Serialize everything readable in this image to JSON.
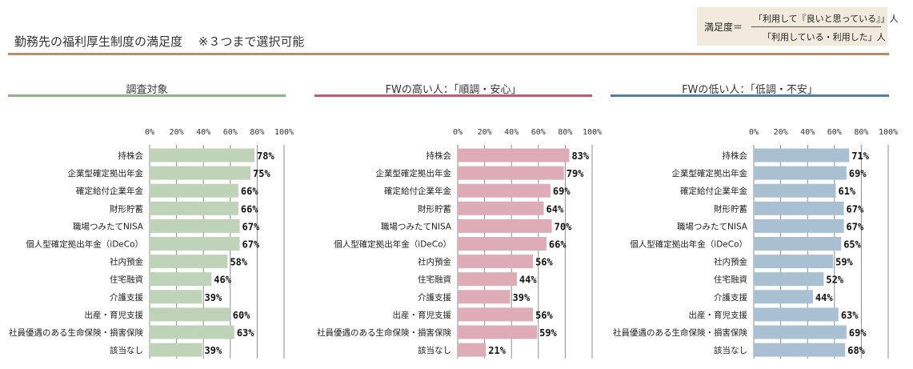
{
  "header": {
    "title": "勤務先の福利厚生制度の満足度　 ※３つまで選択可能",
    "formula_lhs": "満足度＝",
    "formula_numerator": "「利用して『良いと思っている』」人",
    "formula_denominator": "「利用している・利用した」人"
  },
  "colors": {
    "title_rule": "#b58e6a",
    "formula_bg": "#f2ebdd",
    "panels": [
      "#8fb489",
      "#c95a6a",
      "#4f7fae"
    ],
    "bars": [
      "#bed3b8",
      "#ddacb6",
      "#a9c0d2"
    ],
    "grid": "#8c8c8c"
  },
  "chart_data": [
    {
      "type": "bar",
      "orientation": "horizontal",
      "title": "調査対象",
      "xlim": [
        0,
        100
      ],
      "ticks": [
        "0%",
        "20%",
        "40%",
        "60%",
        "80%",
        "100%"
      ],
      "categories": [
        "持株会",
        "企業型確定拠出年金",
        "確定給付企業年金",
        "財形貯蓄",
        "職場つみたてNISA",
        "個人型確定拠出年金（iDeCo）",
        "社内預金",
        "住宅融資",
        "介護支援",
        "出産・育児支援",
        "社員優遇のある生命保険・損害保険",
        "該当なし"
      ],
      "values": [
        78,
        75,
        66,
        66,
        67,
        67,
        58,
        46,
        39,
        60,
        63,
        39
      ],
      "value_labels": [
        "78%",
        "75%",
        "66%",
        "66%",
        "67%",
        "67%",
        "58%",
        "46%",
        "39%",
        "60%",
        "63%",
        "39%"
      ]
    },
    {
      "type": "bar",
      "orientation": "horizontal",
      "title": "FWの高い人：「順調・安心」",
      "xlim": [
        0,
        100
      ],
      "ticks": [
        "0%",
        "20%",
        "40%",
        "60%",
        "80%",
        "100%"
      ],
      "categories": [
        "持株会",
        "企業型確定拠出年金",
        "確定給付企業年金",
        "財形貯蓄",
        "職場つみたてNISA",
        "個人型確定拠出年金（iDeCo）",
        "社内預金",
        "住宅融資",
        "介護支援",
        "出産・育児支援",
        "社員優遇のある生命保険・損害保険",
        "該当なし"
      ],
      "values": [
        83,
        79,
        69,
        64,
        70,
        66,
        56,
        44,
        39,
        56,
        59,
        21
      ],
      "value_labels": [
        "83%",
        "79%",
        "69%",
        "64%",
        "70%",
        "66%",
        "56%",
        "44%",
        "39%",
        "56%",
        "59%",
        "21%"
      ]
    },
    {
      "type": "bar",
      "orientation": "horizontal",
      "title": "FWの低い人：「低調・不安」",
      "xlim": [
        0,
        100
      ],
      "ticks": [
        "0%",
        "20%",
        "40%",
        "60%",
        "80%",
        "100%"
      ],
      "categories": [
        "持株会",
        "企業型確定拠出年金",
        "確定給付企業年金",
        "財形貯蓄",
        "職場つみたてNISA",
        "個人型確定拠出年金（iDeCo）",
        "社内預金",
        "住宅融資",
        "介護支援",
        "出産・育児支援",
        "社員優遇のある生命保険・損害保険",
        "該当なし"
      ],
      "values": [
        71,
        69,
        61,
        67,
        67,
        65,
        59,
        52,
        44,
        63,
        69,
        68
      ],
      "value_labels": [
        "71%",
        "69%",
        "61%",
        "67%",
        "67%",
        "65%",
        "59%",
        "52%",
        "44%",
        "63%",
        "69%",
        "68%"
      ]
    }
  ]
}
